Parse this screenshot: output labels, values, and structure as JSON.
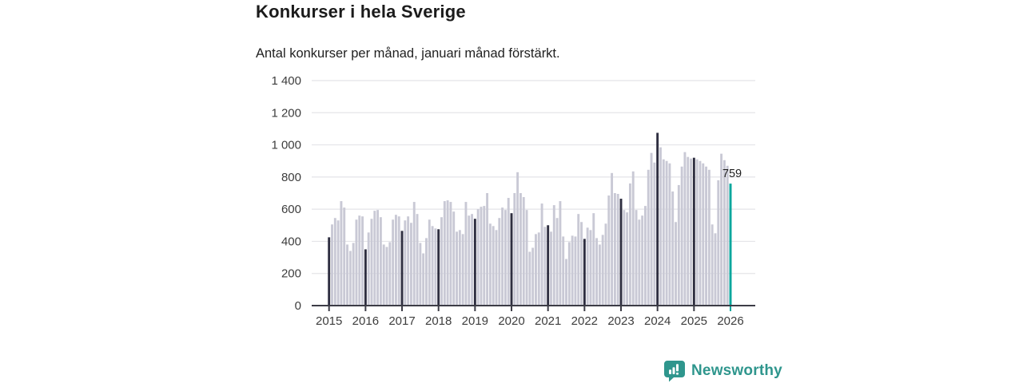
{
  "header": {
    "title": "Konkurser i hela Sverige",
    "subtitle": "Antal konkurser per månad, januari månad förstärkt."
  },
  "chart_data": {
    "type": "bar",
    "title": "Konkurser i hela Sverige",
    "subtitle": "Antal konkurser per månad, januari månad förstärkt.",
    "x_start": {
      "year": 2015,
      "month": 1
    },
    "x_end": {
      "year": 2026,
      "month": 1
    },
    "frequency": "monthly",
    "series": [
      {
        "name": "Antal konkurser per månad",
        "values": [
          425,
          505,
          545,
          530,
          650,
          610,
          380,
          340,
          390,
          535,
          560,
          555,
          350,
          455,
          540,
          590,
          595,
          550,
          380,
          365,
          395,
          535,
          565,
          555,
          465,
          530,
          555,
          515,
          645,
          570,
          390,
          325,
          420,
          535,
          495,
          480,
          475,
          550,
          650,
          655,
          645,
          585,
          460,
          470,
          445,
          645,
          560,
          570,
          540,
          600,
          615,
          620,
          700,
          510,
          495,
          470,
          545,
          610,
          595,
          670,
          575,
          700,
          830,
          700,
          675,
          595,
          335,
          360,
          445,
          455,
          635,
          490,
          500,
          460,
          625,
          545,
          650,
          430,
          290,
          395,
          435,
          430,
          570,
          520,
          415,
          485,
          470,
          575,
          420,
          380,
          440,
          510,
          685,
          825,
          700,
          695,
          665,
          595,
          580,
          760,
          835,
          595,
          535,
          560,
          620,
          845,
          950,
          890,
          1075,
          985,
          910,
          900,
          885,
          710,
          520,
          750,
          865,
          955,
          925,
          915,
          920,
          910,
          900,
          885,
          865,
          845,
          505,
          450,
          780,
          945,
          905,
          870,
          759
        ]
      }
    ],
    "x_tick_labels": [
      "2015",
      "2016",
      "2017",
      "2018",
      "2019",
      "2020",
      "2021",
      "2022",
      "2023",
      "2024",
      "2025",
      "2026"
    ],
    "y_tick_values": [
      0,
      200,
      400,
      600,
      800,
      1000,
      1200,
      1400
    ],
    "y_tick_labels": [
      "0",
      "200",
      "400",
      "600",
      "800",
      "1 000",
      "1 200",
      "1 400"
    ],
    "ylim": [
      0,
      1400
    ],
    "grid": "horizontal",
    "legend": "none",
    "highlight": {
      "january_bars": "dark",
      "latest_bar": "teal",
      "latest_value_label": "759"
    },
    "colors": {
      "bar": "#c9c9d5",
      "january_bar": "#2e2e40",
      "latest_bar": "#00a69c",
      "grid": "#e4e4e8",
      "axis": "#3c3c46",
      "tick_text": "#3d3d3d",
      "annotation_text": "#1f1f1f"
    }
  },
  "footer": {
    "brand": "Newsworthy",
    "brand_color": "#2f968d",
    "logo_icon": "newsworthy-bar-chart-bubble-icon"
  }
}
